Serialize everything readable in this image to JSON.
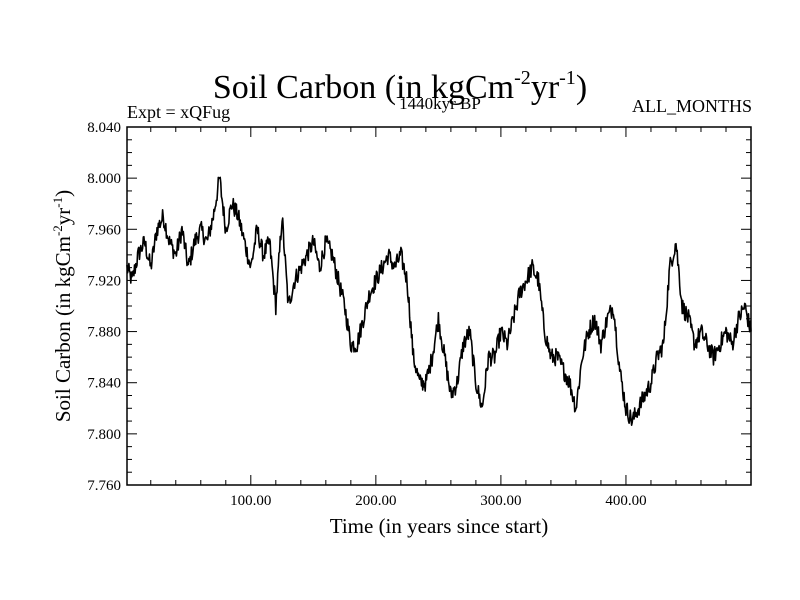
{
  "chart_data": {
    "type": "line",
    "title_main": "Soil Carbon (in kgCm",
    "title_exp1": "-2",
    "title_mid": "yr",
    "title_exp2": "-1",
    "title_close": ")",
    "subtitle": "1440kyr BP",
    "left_annotation": "Expt = xQFug",
    "right_annotation": "ALL_MONTHS",
    "xlabel": "Time (in years since start)",
    "ylabel": "Soil Carbon (in kgCm-2yr-1)",
    "ylabel_parts": {
      "main": "Soil Carbon (in kgCm",
      "exp1": "-2",
      "mid": "yr",
      "exp2": "-1",
      "close": ")"
    },
    "xlim": [
      1,
      500
    ],
    "ylim": [
      7.76,
      8.04
    ],
    "x_ticks": [
      100,
      200,
      300,
      400
    ],
    "x_tick_labels": [
      "100.00",
      "200.00",
      "300.00",
      "400.00"
    ],
    "y_ticks": [
      7.76,
      7.8,
      7.84,
      7.88,
      7.92,
      7.96,
      8.0,
      8.04
    ],
    "y_tick_labels": [
      "7.760",
      "7.800",
      "7.840",
      "7.880",
      "7.920",
      "7.960",
      "8.000",
      "8.040"
    ],
    "series": [
      {
        "name": "Soil Carbon",
        "color": "#000000",
        "x": [
          1,
          5,
          10,
          15,
          20,
          25,
          30,
          35,
          40,
          45,
          50,
          55,
          60,
          65,
          70,
          75,
          80,
          85,
          90,
          95,
          100,
          105,
          110,
          115,
          120,
          125,
          130,
          135,
          140,
          145,
          150,
          155,
          160,
          165,
          170,
          175,
          180,
          185,
          190,
          195,
          200,
          205,
          210,
          215,
          220,
          225,
          230,
          235,
          240,
          245,
          250,
          255,
          260,
          265,
          270,
          275,
          280,
          285,
          290,
          295,
          300,
          305,
          310,
          315,
          320,
          325,
          330,
          335,
          340,
          345,
          350,
          355,
          360,
          365,
          370,
          375,
          380,
          385,
          390,
          395,
          400,
          405,
          410,
          415,
          420,
          425,
          430,
          435,
          440,
          445,
          450,
          455,
          460,
          465,
          470,
          475,
          480,
          485,
          490,
          495,
          500
        ],
        "values": [
          7.93,
          7.92,
          7.94,
          7.95,
          7.93,
          7.96,
          7.97,
          7.95,
          7.94,
          7.96,
          7.93,
          7.95,
          7.96,
          7.95,
          7.97,
          8.0,
          7.96,
          7.98,
          7.97,
          7.95,
          7.93,
          7.96,
          7.94,
          7.95,
          7.9,
          7.97,
          7.9,
          7.92,
          7.93,
          7.94,
          7.95,
          7.93,
          7.95,
          7.94,
          7.92,
          7.9,
          7.87,
          7.87,
          7.89,
          7.91,
          7.92,
          7.93,
          7.94,
          7.93,
          7.94,
          7.92,
          7.86,
          7.84,
          7.84,
          7.86,
          7.89,
          7.86,
          7.83,
          7.84,
          7.87,
          7.88,
          7.84,
          7.82,
          7.86,
          7.86,
          7.88,
          7.87,
          7.89,
          7.91,
          7.92,
          7.93,
          7.92,
          7.88,
          7.86,
          7.86,
          7.85,
          7.84,
          7.82,
          7.86,
          7.88,
          7.89,
          7.87,
          7.89,
          7.9,
          7.85,
          7.82,
          7.81,
          7.82,
          7.83,
          7.84,
          7.86,
          7.87,
          7.93,
          7.95,
          7.9,
          7.89,
          7.87,
          7.88,
          7.87,
          7.86,
          7.87,
          7.88,
          7.87,
          7.89,
          7.9,
          7.88
        ]
      }
    ]
  }
}
